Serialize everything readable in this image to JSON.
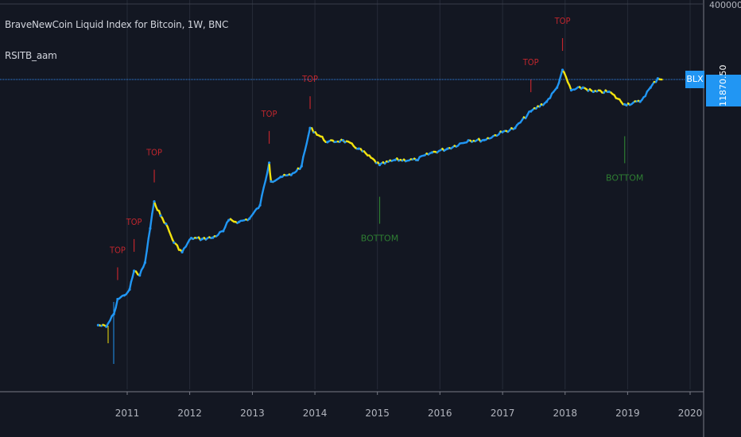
{
  "header": {
    "title": "BraveNewCoin Liquid Index for Bitcoin, 1W, BNC",
    "indicator": "RSITB_aam"
  },
  "price_tag": {
    "symbol": "BLX",
    "price": "11870.50"
  },
  "scale_label": "400000.00",
  "colors": {
    "up": "#2196f3",
    "down": "#f2e20e",
    "top": "#c0262d",
    "bottom": "#2e7d32",
    "bg": "#131722",
    "priceline": "#2a6cbd"
  },
  "chart_data": {
    "type": "line",
    "title": "BraveNewCoin Liquid Index for Bitcoin, 1W, BNC",
    "x_axis": {
      "type": "time",
      "ticks": [
        "2011",
        "2012",
        "2013",
        "2014",
        "2015",
        "2016",
        "2017",
        "2018",
        "2019",
        "2020"
      ]
    },
    "y_axis": {
      "scale": "log",
      "visible_tick_labels": [
        "400000.00"
      ],
      "last_value": 11870.5
    },
    "series": [
      {
        "name": "BLX",
        "x": [
          "2010-07-15",
          "2010-09-01",
          "2010-10-15",
          "2010-11-06",
          "2010-12-15",
          "2011-01-15",
          "2011-02-10",
          "2011-03-15",
          "2011-04-15",
          "2011-05-15",
          "2011-06-08",
          "2011-07-15",
          "2011-08-15",
          "2011-10-01",
          "2011-11-18",
          "2012-01-10",
          "2012-03-15",
          "2012-05-15",
          "2012-07-15",
          "2012-08-16",
          "2012-10-15",
          "2012-12-15",
          "2013-02-15",
          "2013-04-09",
          "2013-04-20",
          "2013-06-15",
          "2013-08-15",
          "2013-10-15",
          "2013-12-04",
          "2014-03-15",
          "2014-06-15",
          "2014-09-15",
          "2015-01-14",
          "2015-04-15",
          "2015-08-15",
          "2015-11-15",
          "2016-02-15",
          "2016-06-15",
          "2016-09-15",
          "2016-12-31",
          "2017-03-15",
          "2017-06-15",
          "2017-09-15",
          "2017-11-15",
          "2017-12-17",
          "2018-02-06",
          "2018-04-15",
          "2018-06-15",
          "2018-09-15",
          "2018-12-15",
          "2019-03-15",
          "2019-05-15",
          "2019-06-26",
          "2019-07-20"
        ],
        "values": [
          0.07,
          0.065,
          0.12,
          0.25,
          0.3,
          0.4,
          1.0,
          0.8,
          1.5,
          8,
          30,
          15,
          10,
          4,
          2.5,
          5,
          4.8,
          5.1,
          7,
          12,
          11,
          13,
          25,
          200,
          80,
          100,
          110,
          170,
          1100,
          550,
          600,
          400,
          180,
          230,
          230,
          330,
          400,
          600,
          610,
          900,
          1100,
          2500,
          4000,
          8000,
          19000,
          7000,
          8000,
          6500,
          6500,
          3500,
          4000,
          8000,
          12500,
          11870.5
        ]
      }
    ],
    "annotations": [
      {
        "text": "TOP",
        "x": "2010-11-06"
      },
      {
        "text": "TOP",
        "x": "2011-02-10"
      },
      {
        "text": "TOP",
        "x": "2011-06-08"
      },
      {
        "text": "TOP",
        "x": "2013-04-09"
      },
      {
        "text": "TOP",
        "x": "2013-12-04"
      },
      {
        "text": "BOTTOM",
        "x": "2015-01-14"
      },
      {
        "text": "TOP",
        "x": "2017-06-15"
      },
      {
        "text": "TOP",
        "x": "2017-12-17"
      },
      {
        "text": "BOTTOM",
        "x": "2018-12-15"
      }
    ],
    "horizontal_line": 11870.5,
    "grid": true
  }
}
